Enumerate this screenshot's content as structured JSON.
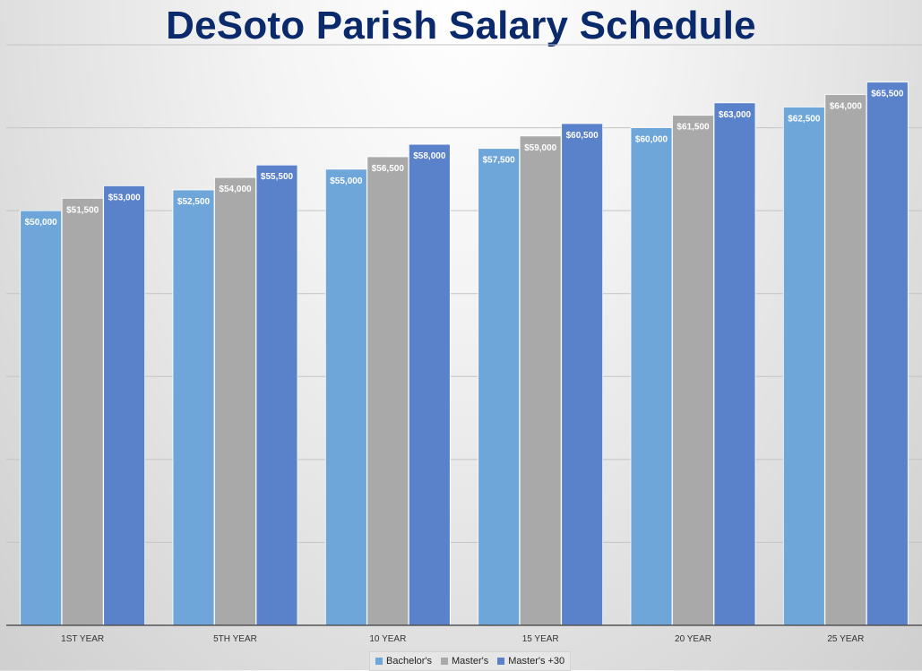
{
  "chart_data": {
    "type": "bar",
    "title": "DeSoto Parish Salary Schedule",
    "xlabel": "",
    "ylabel": "",
    "categories": [
      "1ST YEAR",
      "5TH YEAR",
      "10 YEAR",
      "15 YEAR",
      "20 YEAR",
      "25 YEAR"
    ],
    "series": [
      {
        "name": "Bachelor's",
        "color": "#6ea6da",
        "values": [
          50000,
          52500,
          55000,
          57500,
          60000,
          62500
        ],
        "labels": [
          "$50,000",
          "$52,500",
          "$55,000",
          "$57,500",
          "$60,000",
          "$62,500"
        ]
      },
      {
        "name": "Master's",
        "color": "#a9a9a9",
        "values": [
          51500,
          54000,
          56500,
          59000,
          61500,
          64000
        ],
        "labels": [
          "$51,500",
          "$54,000",
          "$56,500",
          "$59,000",
          "$61,500",
          "$64,000"
        ]
      },
      {
        "name": "Master's +30",
        "color": "#5a82cb",
        "values": [
          53000,
          55500,
          58000,
          60500,
          63000,
          65500
        ],
        "labels": [
          "$53,000",
          "$55,500",
          "$58,000",
          "$60,500",
          "$63,000",
          "$65,500"
        ]
      }
    ],
    "ylim": [
      0,
      70000
    ],
    "grid": true,
    "legend_position": "bottom-center"
  }
}
